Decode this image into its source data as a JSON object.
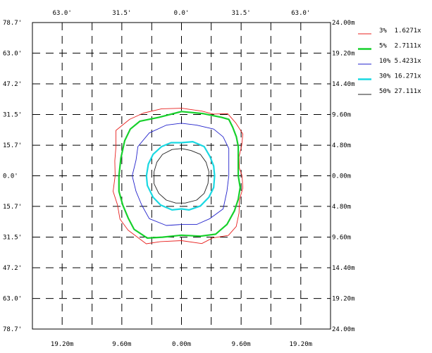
{
  "chart_data": {
    "type": "line",
    "title": "",
    "subtitle": "",
    "xlabel": "",
    "ylabel": "",
    "grid": true,
    "legend_position": "right",
    "x_range_ft": [
      -78.7,
      78.7
    ],
    "y_range_ft": [
      -78.7,
      78.7
    ],
    "x_top_ticks": [
      {
        "value": -63.0,
        "label": "63.0'"
      },
      {
        "value": -31.5,
        "label": "31.5'"
      },
      {
        "value": 0.0,
        "label": "0.0'"
      },
      {
        "value": 31.5,
        "label": "31.5'"
      },
      {
        "value": 63.0,
        "label": "63.0'"
      }
    ],
    "x_bottom_ticks": [
      {
        "value": -63.0,
        "label": "19.20m"
      },
      {
        "value": -31.5,
        "label": "9.60m"
      },
      {
        "value": 0.0,
        "label": "0.00m"
      },
      {
        "value": 31.5,
        "label": "9.60m"
      },
      {
        "value": 63.0,
        "label": "19.20m"
      }
    ],
    "y_left_ticks": [
      {
        "value": 78.7,
        "label": "78.7'"
      },
      {
        "value": 63.0,
        "label": "63.0'"
      },
      {
        "value": 47.2,
        "label": "47.2'"
      },
      {
        "value": 31.5,
        "label": "31.5'"
      },
      {
        "value": 15.7,
        "label": "15.7'"
      },
      {
        "value": 0.0,
        "label": "0.0'"
      },
      {
        "value": -15.7,
        "label": "15.7'"
      },
      {
        "value": -31.5,
        "label": "31.5'"
      },
      {
        "value": -47.2,
        "label": "47.2'"
      },
      {
        "value": -63.0,
        "label": "63.0'"
      },
      {
        "value": -78.7,
        "label": "78.7'"
      }
    ],
    "y_right_ticks": [
      {
        "value": 78.7,
        "label": "24.00m"
      },
      {
        "value": 63.0,
        "label": "19.20m"
      },
      {
        "value": 47.2,
        "label": "14.40m"
      },
      {
        "value": 31.5,
        "label": "9.60m"
      },
      {
        "value": 15.7,
        "label": "4.80m"
      },
      {
        "value": 0.0,
        "label": "0.00m"
      },
      {
        "value": -15.7,
        "label": "4.80m"
      },
      {
        "value": -31.5,
        "label": "9.60m"
      },
      {
        "value": -47.2,
        "label": "14.40m"
      },
      {
        "value": -63.0,
        "label": "19.20m"
      },
      {
        "value": -78.7,
        "label": "24.00m"
      }
    ],
    "series": [
      {
        "name": "3% 1.6271x",
        "color": "#e8211f",
        "stroke_weight": "thin",
        "points": [
          [
            0.0,
            34.7
          ],
          [
            10.8,
            33.2
          ],
          [
            16.8,
            31.7
          ],
          [
            24.4,
            31.9
          ],
          [
            28.6,
            27.2
          ],
          [
            32.4,
            21.5
          ],
          [
            31.8,
            15.7
          ],
          [
            30.4,
            9.7
          ],
          [
            30.6,
            3.9
          ],
          [
            32.0,
            0.0
          ],
          [
            32.4,
            -6.3
          ],
          [
            30.6,
            -12.5
          ],
          [
            30.4,
            -19.1
          ],
          [
            28.9,
            -26.0
          ],
          [
            24.8,
            -30.6
          ],
          [
            16.5,
            -31.9
          ],
          [
            10.7,
            -34.8
          ],
          [
            0.0,
            -33.3
          ],
          [
            -11.1,
            -33.8
          ],
          [
            -18.6,
            -34.9
          ],
          [
            -28.2,
            -27.9
          ],
          [
            -32.5,
            -22.2
          ],
          [
            -33.8,
            -14.9
          ],
          [
            -36.1,
            -8.0
          ],
          [
            -35.0,
            0.0
          ],
          [
            -35.2,
            7.7
          ],
          [
            -34.6,
            14.7
          ],
          [
            -34.6,
            23.3
          ],
          [
            -27.4,
            29.0
          ],
          [
            -20.1,
            32.2
          ],
          [
            -10.5,
            34.4
          ]
        ]
      },
      {
        "name": "5% 2.7111x",
        "color": "#17d02c",
        "stroke_weight": "thick",
        "points": [
          [
            0.0,
            33.0
          ],
          [
            11.1,
            32.0
          ],
          [
            21.2,
            30.0
          ],
          [
            25.0,
            29.0
          ],
          [
            27.0,
            25.0
          ],
          [
            29.0,
            20.0
          ],
          [
            30.0,
            15.0
          ],
          [
            30.0,
            8.0
          ],
          [
            30.0,
            0.0
          ],
          [
            31.0,
            -6.0
          ],
          [
            30.0,
            -12.0
          ],
          [
            28.0,
            -18.0
          ],
          [
            24.0,
            -25.0
          ],
          [
            18.0,
            -30.0
          ],
          [
            10.0,
            -31.0
          ],
          [
            0.0,
            -30.5
          ],
          [
            -10.0,
            -31.5
          ],
          [
            -18.0,
            -32.0
          ],
          [
            -25.0,
            -27.5
          ],
          [
            -28.0,
            -22.0
          ],
          [
            -31.0,
            -15.0
          ],
          [
            -33.0,
            -8.0
          ],
          [
            -33.0,
            0.0
          ],
          [
            -32.0,
            9.0
          ],
          [
            -30.0,
            18.0
          ],
          [
            -27.0,
            24.0
          ],
          [
            -22.0,
            28.0
          ],
          [
            -12.0,
            30.0
          ]
        ]
      },
      {
        "name": "10% 5.4231x",
        "color": "#2222cc",
        "stroke_weight": "thin",
        "points": [
          [
            0.0,
            27.0
          ],
          [
            8.0,
            26.0
          ],
          [
            17.0,
            24.0
          ],
          [
            22.0,
            20.0
          ],
          [
            25.0,
            14.0
          ],
          [
            25.0,
            7.0
          ],
          [
            25.0,
            0.0
          ],
          [
            24.0,
            -8.0
          ],
          [
            22.0,
            -17.0
          ],
          [
            15.0,
            -22.0
          ],
          [
            8.0,
            -25.0
          ],
          [
            0.0,
            -25.0
          ],
          [
            -8.0,
            -25.5
          ],
          [
            -17.0,
            -22.0
          ],
          [
            -21.0,
            -15.0
          ],
          [
            -24.0,
            -8.0
          ],
          [
            -26.0,
            0.0
          ],
          [
            -24.0,
            8.0
          ],
          [
            -23.0,
            15.0
          ],
          [
            -17.0,
            22.0
          ],
          [
            -8.0,
            26.0
          ]
        ]
      },
      {
        "name": "30% 16.271x",
        "color": "#1ad8e2",
        "stroke_weight": "thick",
        "points": [
          [
            0.0,
            17.0
          ],
          [
            6.0,
            17.5
          ],
          [
            12.0,
            15.0
          ],
          [
            15.0,
            10.0
          ],
          [
            17.0,
            5.0
          ],
          [
            17.5,
            0.0
          ],
          [
            17.0,
            -6.0
          ],
          [
            14.5,
            -11.0
          ],
          [
            10.0,
            -15.5
          ],
          [
            4.0,
            -17.5
          ],
          [
            0.0,
            -17.0
          ],
          [
            -5.0,
            -17.5
          ],
          [
            -11.0,
            -15.0
          ],
          [
            -15.0,
            -11.0
          ],
          [
            -18.0,
            -5.0
          ],
          [
            -18.5,
            0.0
          ],
          [
            -17.5,
            6.0
          ],
          [
            -15.0,
            11.0
          ],
          [
            -10.5,
            15.0
          ],
          [
            -5.5,
            17.0
          ]
        ]
      },
      {
        "name": "50% 27.111x",
        "color": "#222222",
        "stroke_weight": "thin",
        "points": [
          [
            0.0,
            14.0
          ],
          [
            5.0,
            13.0
          ],
          [
            10.0,
            11.0
          ],
          [
            13.0,
            7.0
          ],
          [
            14.5,
            2.0
          ],
          [
            14.0,
            -4.0
          ],
          [
            12.0,
            -9.0
          ],
          [
            8.0,
            -12.5
          ],
          [
            2.0,
            -14.0
          ],
          [
            -3.0,
            -14.0
          ],
          [
            -8.0,
            -12.5
          ],
          [
            -12.0,
            -9.0
          ],
          [
            -14.5,
            -4.0
          ],
          [
            -14.5,
            2.0
          ],
          [
            -13.0,
            7.0
          ],
          [
            -10.0,
            11.0
          ],
          [
            -5.0,
            13.5
          ]
        ]
      }
    ],
    "legend": [
      {
        "label": "3%  1.6271x",
        "color": "#e8211f",
        "stroke_weight": "thin"
      },
      {
        "label": "5%  2.7111x",
        "color": "#17d02c",
        "stroke_weight": "thick"
      },
      {
        "label": "10% 5.4231x",
        "color": "#2222cc",
        "stroke_weight": "thin"
      },
      {
        "label": "30% 16.271x",
        "color": "#1ad8e2",
        "stroke_weight": "thick"
      },
      {
        "label": "50% 27.111x",
        "color": "#222222",
        "stroke_weight": "thin"
      }
    ]
  }
}
